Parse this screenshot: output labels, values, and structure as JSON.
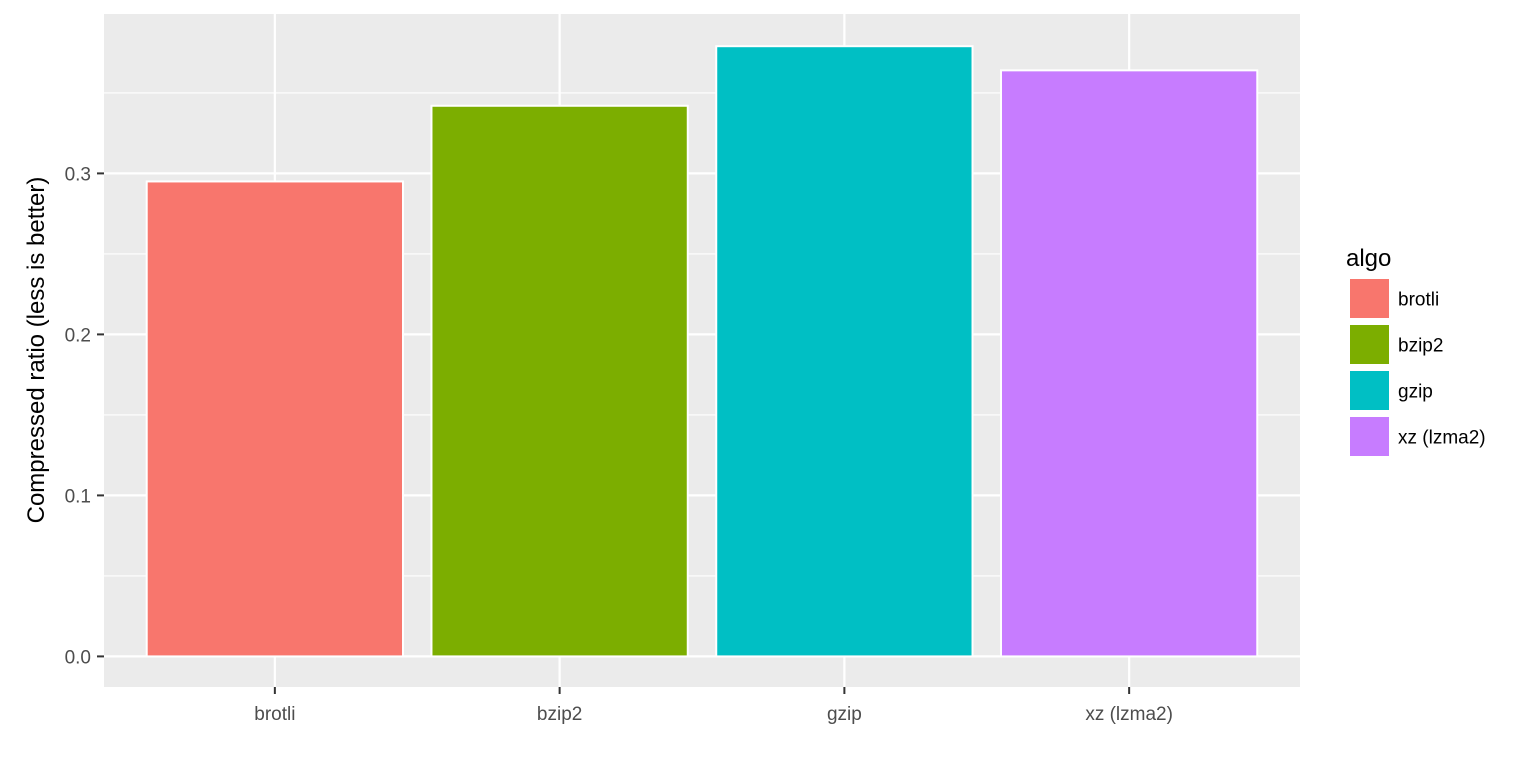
{
  "chart_data": {
    "type": "bar",
    "categories": [
      "brotli",
      "bzip2",
      "gzip",
      "xz (lzma2)"
    ],
    "values": [
      0.295,
      0.342,
      0.379,
      0.364
    ],
    "colors": [
      "#F8766D",
      "#7CAE00",
      "#00BFC4",
      "#C77CFF"
    ],
    "title": "",
    "xlabel": "",
    "ylabel": "Compressed ratio (less is better)",
    "ylim": [
      -0.019,
      0.399
    ],
    "yticks": [
      0.0,
      0.1,
      0.2,
      0.3
    ],
    "ytick_labels": [
      "0.0",
      "0.1",
      "0.2",
      "0.3"
    ],
    "grid": true,
    "legend": {
      "title": "algo",
      "position": "right",
      "entries": [
        "brotli",
        "bzip2",
        "gzip",
        "xz (lzma2)"
      ]
    },
    "theme": {
      "panel_background": "#EBEBEB",
      "grid_color": "#FFFFFF",
      "bar_outline": "#FFFFFF"
    }
  }
}
